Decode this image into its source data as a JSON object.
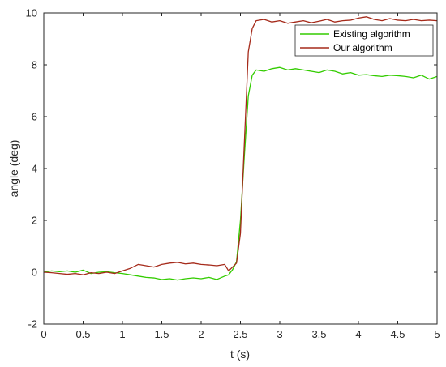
{
  "chart_data": {
    "type": "line",
    "xlabel": "t (s)",
    "ylabel": "angle  (deg)",
    "xlim": [
      0,
      5
    ],
    "ylim": [
      -2,
      10
    ],
    "xticks": [
      "0",
      "0.5",
      "1",
      "1.5",
      "2",
      "2.5",
      "3",
      "3.5",
      "4",
      "4.5",
      "5"
    ],
    "yticks": [
      "-2",
      "0",
      "2",
      "4",
      "6",
      "8",
      "10"
    ],
    "grid": false,
    "legend_position": "top-right",
    "series": [
      {
        "name": "Existing algorithm",
        "color": "#33cc00",
        "x": [
          0,
          0.1,
          0.2,
          0.3,
          0.4,
          0.5,
          0.6,
          0.7,
          0.8,
          0.9,
          1.0,
          1.1,
          1.2,
          1.3,
          1.4,
          1.5,
          1.6,
          1.7,
          1.8,
          1.9,
          2.0,
          2.1,
          2.2,
          2.3,
          2.35,
          2.4,
          2.45,
          2.5,
          2.55,
          2.6,
          2.65,
          2.7,
          2.8,
          2.9,
          3.0,
          3.1,
          3.2,
          3.3,
          3.4,
          3.5,
          3.6,
          3.7,
          3.8,
          3.9,
          4.0,
          4.1,
          4.2,
          4.3,
          4.4,
          4.5,
          4.6,
          4.7,
          4.8,
          4.9,
          5.0
        ],
        "y": [
          0.0,
          0.05,
          0.02,
          0.05,
          0.0,
          0.08,
          -0.05,
          0.0,
          0.02,
          -0.02,
          -0.05,
          -0.1,
          -0.15,
          -0.2,
          -0.22,
          -0.28,
          -0.25,
          -0.3,
          -0.25,
          -0.22,
          -0.25,
          -0.2,
          -0.28,
          -0.15,
          -0.1,
          0.1,
          0.4,
          2.0,
          4.5,
          6.8,
          7.6,
          7.8,
          7.75,
          7.85,
          7.9,
          7.8,
          7.85,
          7.8,
          7.75,
          7.7,
          7.8,
          7.75,
          7.65,
          7.7,
          7.6,
          7.62,
          7.58,
          7.55,
          7.6,
          7.58,
          7.55,
          7.5,
          7.6,
          7.45,
          7.55
        ]
      },
      {
        "name": "Our algorithm",
        "color": "#a52a1a",
        "x": [
          0,
          0.1,
          0.2,
          0.3,
          0.4,
          0.5,
          0.6,
          0.7,
          0.8,
          0.9,
          1.0,
          1.1,
          1.2,
          1.3,
          1.4,
          1.5,
          1.6,
          1.7,
          1.8,
          1.9,
          2.0,
          2.1,
          2.2,
          2.3,
          2.35,
          2.4,
          2.45,
          2.5,
          2.55,
          2.6,
          2.65,
          2.7,
          2.8,
          2.9,
          3.0,
          3.1,
          3.2,
          3.3,
          3.4,
          3.5,
          3.6,
          3.7,
          3.8,
          3.9,
          4.0,
          4.1,
          4.2,
          4.3,
          4.4,
          4.5,
          4.6,
          4.7,
          4.8,
          4.9,
          5.0
        ],
        "y": [
          0.0,
          -0.02,
          -0.05,
          -0.08,
          -0.05,
          -0.1,
          -0.02,
          -0.05,
          0.0,
          -0.05,
          0.05,
          0.15,
          0.3,
          0.25,
          0.2,
          0.3,
          0.35,
          0.38,
          0.32,
          0.35,
          0.3,
          0.28,
          0.25,
          0.3,
          0.05,
          0.2,
          0.35,
          1.5,
          5.0,
          8.5,
          9.4,
          9.7,
          9.75,
          9.65,
          9.7,
          9.6,
          9.65,
          9.7,
          9.62,
          9.68,
          9.75,
          9.65,
          9.7,
          9.72,
          9.8,
          9.85,
          9.75,
          9.7,
          9.78,
          9.72,
          9.7,
          9.75,
          9.7,
          9.72,
          9.7
        ]
      }
    ]
  }
}
